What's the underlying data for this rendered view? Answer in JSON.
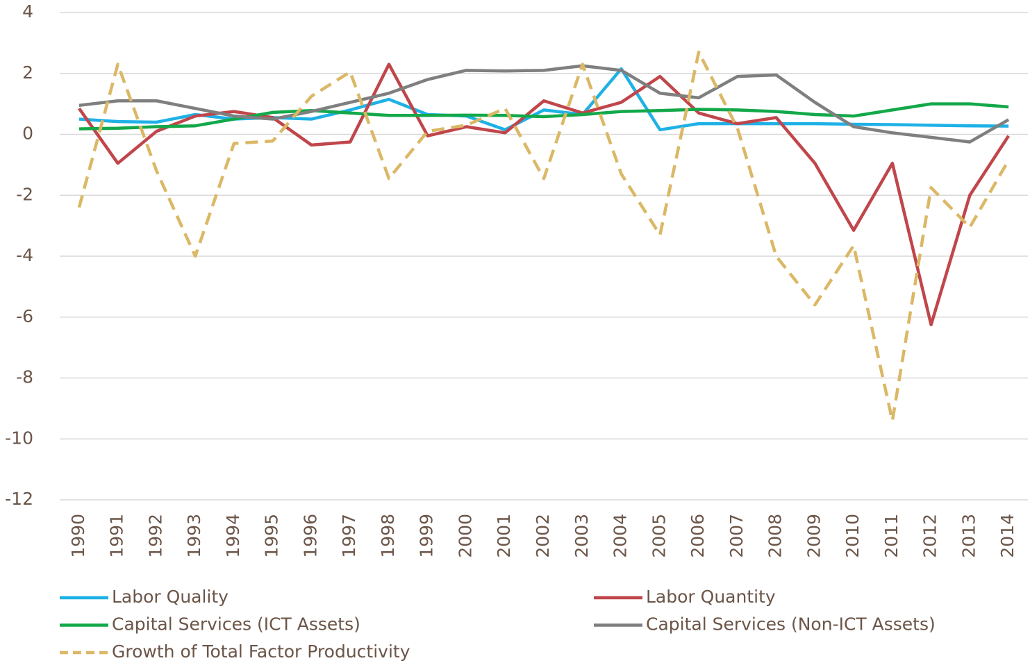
{
  "chart_data": {
    "type": "line",
    "categories": [
      "1990",
      "1991",
      "1992",
      "1993",
      "1994",
      "1995",
      "1996",
      "1997",
      "1998",
      "1999",
      "2000",
      "2001",
      "2002",
      "2003",
      "2004",
      "2005",
      "2006",
      "2007",
      "2008",
      "2009",
      "2010",
      "2011",
      "2012",
      "2013",
      "2014"
    ],
    "series": [
      {
        "name": "Labor Quality",
        "color": "#1fb1e6",
        "dashed": false,
        "values": [
          0.5,
          0.42,
          0.4,
          0.65,
          0.5,
          0.55,
          0.5,
          0.8,
          1.15,
          0.65,
          0.6,
          0.15,
          0.8,
          0.65,
          2.15,
          0.15,
          0.35,
          0.35,
          0.35,
          0.35,
          0.33,
          0.32,
          0.3,
          0.28,
          0.27
        ]
      },
      {
        "name": "Labor Quantity",
        "color": "#c0464b",
        "dashed": false,
        "values": [
          0.85,
          -0.95,
          0.1,
          0.6,
          0.75,
          0.55,
          -0.35,
          -0.25,
          2.3,
          -0.05,
          0.25,
          0.05,
          1.1,
          0.7,
          1.05,
          1.9,
          0.7,
          0.35,
          0.55,
          -0.95,
          -3.15,
          -0.95,
          -6.25,
          -2.0,
          -0.05
        ]
      },
      {
        "name": "Capital Services (ICT Assets)",
        "color": "#13a84a",
        "dashed": false,
        "values": [
          0.18,
          0.2,
          0.25,
          0.28,
          0.5,
          0.72,
          0.78,
          0.7,
          0.62,
          0.62,
          0.63,
          0.62,
          0.58,
          0.65,
          0.75,
          0.78,
          0.82,
          0.8,
          0.75,
          0.65,
          0.6,
          0.8,
          1.0,
          1.0,
          0.9
        ]
      },
      {
        "name": "Capital Services (Non-ICT Assets)",
        "color": "#7f7f7f",
        "dashed": false,
        "values": [
          0.95,
          1.1,
          1.1,
          0.85,
          0.6,
          0.5,
          0.75,
          1.05,
          1.35,
          1.8,
          2.1,
          2.08,
          2.1,
          2.25,
          2.1,
          1.35,
          1.2,
          1.9,
          1.95,
          1.05,
          0.25,
          0.05,
          -0.1,
          -0.25,
          0.48
        ]
      },
      {
        "name": "Growth of Total Factor Productivity",
        "color": "#dbb866",
        "dashed": true,
        "values": [
          -2.4,
          2.3,
          -1.2,
          -4.0,
          -0.3,
          -0.22,
          1.25,
          2.05,
          -1.45,
          0.1,
          0.3,
          0.85,
          -1.45,
          2.3,
          -1.3,
          -3.3,
          2.7,
          0.2,
          -4.0,
          -5.6,
          -3.65,
          -9.4,
          -1.75,
          -3.05,
          -0.85
        ]
      }
    ],
    "ylim": [
      -12,
      4
    ],
    "yticks": [
      -12,
      -10,
      -8,
      -6,
      -4,
      -2,
      0,
      2,
      4
    ],
    "grid": true,
    "legend": "bottom"
  }
}
